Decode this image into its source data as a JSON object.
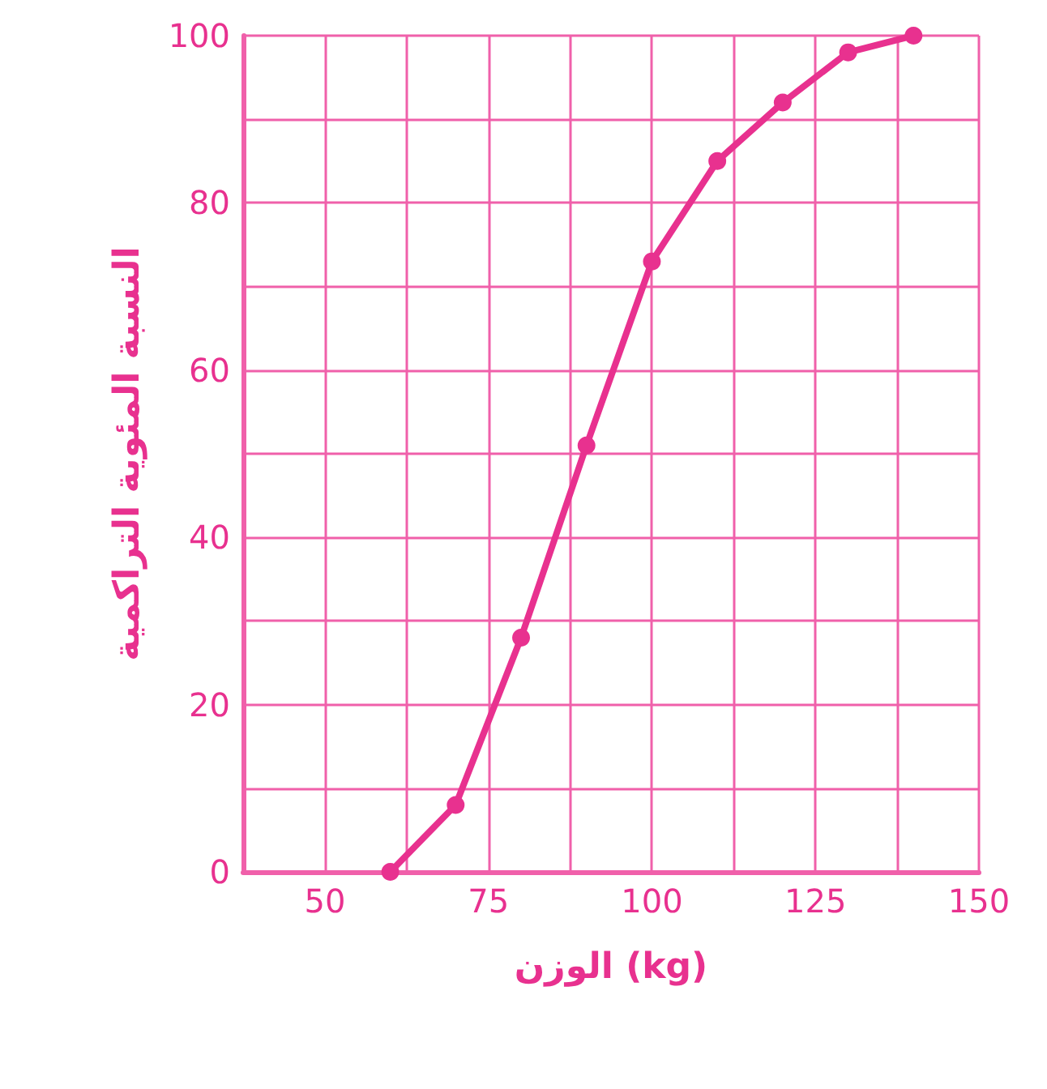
{
  "chart_data": {
    "type": "line",
    "xlabel": "الوزن (kg)",
    "ylabel": "النسبة المئوية التراكمية",
    "x": [
      60,
      70,
      80,
      90,
      100,
      110,
      120,
      130,
      140
    ],
    "series": [
      {
        "color": "#e8318f",
        "values": [
          0,
          8,
          28,
          51,
          73,
          85,
          92,
          98,
          100
        ]
      }
    ],
    "xlim": [
      37.5,
      150
    ],
    "xticks": [
      {
        "value": 37.5,
        "label": null
      },
      50,
      {
        "value": 62.5,
        "label": null
      },
      75,
      {
        "value": 87.5,
        "label": null
      },
      100,
      {
        "value": 112.5,
        "label": null
      },
      125,
      {
        "value": 137.5,
        "label": null
      },
      150
    ],
    "ylim": [
      0,
      100
    ],
    "yticks": [
      0,
      {
        "value": 10,
        "label": null
      },
      20,
      {
        "value": 30,
        "label": null
      },
      40,
      {
        "value": 50,
        "label": null
      },
      60,
      {
        "value": 70,
        "label": null
      },
      80,
      {
        "value": 90,
        "label": null
      },
      100
    ],
    "grid": true,
    "marker": "circle",
    "line_style": "solid"
  }
}
